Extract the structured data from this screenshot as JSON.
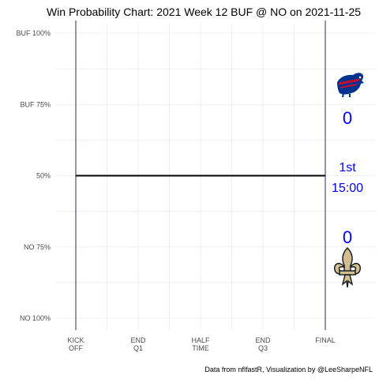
{
  "chart_data": {
    "type": "line",
    "title": "Win Probability Chart: 2021 Week 12 BUF @ NO on 2021-11-25",
    "caption": "Data from nflfastR, Visualization by @LeeSharpeNFL",
    "x_ticks": [
      {
        "label_top": "KICK",
        "label_bottom": "OFF",
        "value": 0
      },
      {
        "label_top": "END",
        "label_bottom": "Q1",
        "value": 900
      },
      {
        "label_top": "HALF",
        "label_bottom": "TIME",
        "value": 1800
      },
      {
        "label_top": "END",
        "label_bottom": "Q3",
        "value": 2700
      },
      {
        "label_top": "FINAL",
        "label_bottom": "",
        "value": 3600
      }
    ],
    "x_range": [
      0,
      3600
    ],
    "y_ticks": [
      {
        "label": "BUF 100%",
        "value": 1.0
      },
      {
        "label": "BUF 75%",
        "value": 0.75
      },
      {
        "label": "50%",
        "value": 0.5
      },
      {
        "label": "NO 75%",
        "value": 0.25
      },
      {
        "label": "NO 100%",
        "value": 0.0
      }
    ],
    "y_range": [
      0,
      1
    ],
    "series": [
      {
        "x": [
          0,
          3600
        ],
        "y": [
          0.5,
          0.5
        ],
        "color": "#000000"
      }
    ],
    "vlines": [
      0,
      3600
    ],
    "grid": true,
    "away": {
      "team": "BUF",
      "score": "0",
      "primary": "#00338D",
      "secondary": "#C60C30",
      "icon": "buffalo-logo-icon"
    },
    "home": {
      "team": "NO",
      "score": "0",
      "primary": "#D3BC8D",
      "secondary": "#101820",
      "icon": "fleur-de-lis-logo-icon"
    },
    "game_state": {
      "quarter": "1st",
      "clock": "15:00"
    },
    "colors": {
      "line": "#000000",
      "vline": "#1F2E6E",
      "text_accent": "#0000FF",
      "grid": "#EBEBEB"
    }
  }
}
